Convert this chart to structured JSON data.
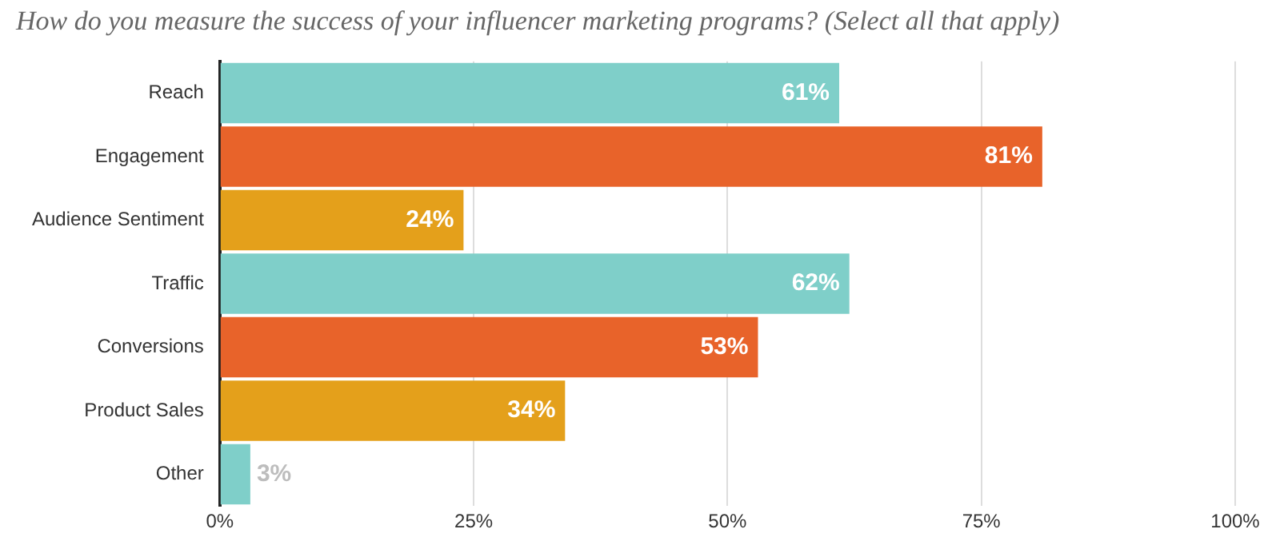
{
  "chart_data": {
    "type": "bar",
    "orientation": "horizontal",
    "title": "How do you measure the success of your influencer marketing programs? (Select all that apply)",
    "categories": [
      "Reach",
      "Engagement",
      "Audience Sentiment",
      "Traffic",
      "Conversions",
      "Product Sales",
      "Other"
    ],
    "values": [
      61,
      81,
      24,
      62,
      53,
      34,
      3
    ],
    "colors": [
      "#7fcfc9",
      "#e8632a",
      "#e4a01b",
      "#7fcfc9",
      "#e8632a",
      "#e4a01b",
      "#7fcfc9"
    ],
    "value_labels": [
      "61%",
      "81%",
      "24%",
      "62%",
      "53%",
      "34%",
      "3%"
    ],
    "xlim": [
      0,
      100
    ],
    "xticks": [
      {
        "value": 0,
        "label": "0%"
      },
      {
        "value": 25,
        "label": "25%"
      },
      {
        "value": 50,
        "label": "50%"
      },
      {
        "value": 75,
        "label": "75%"
      },
      {
        "value": 100,
        "label": "100%"
      }
    ],
    "grid": "x",
    "legend": false
  }
}
